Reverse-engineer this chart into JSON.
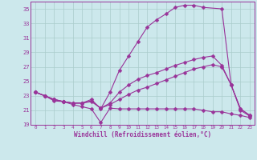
{
  "xlabel": "Windchill (Refroidissement éolien,°C)",
  "bg_color": "#cce8ec",
  "grid_color": "#aacccc",
  "line_color": "#993399",
  "xlim": [
    -0.5,
    23.5
  ],
  "ylim": [
    19,
    36
  ],
  "xtick_vals": [
    0,
    1,
    2,
    3,
    4,
    5,
    6,
    7,
    8,
    9,
    10,
    11,
    12,
    13,
    14,
    15,
    16,
    17,
    18,
    19,
    20,
    21,
    22,
    23
  ],
  "ytick_vals": [
    19,
    21,
    23,
    25,
    27,
    29,
    31,
    33,
    35
  ],
  "series": [
    {
      "x": [
        0,
        1,
        2,
        3,
        4,
        5,
        6,
        7,
        8,
        9,
        10,
        11,
        12,
        13,
        14,
        15,
        16,
        17,
        18,
        20,
        21,
        22,
        23
      ],
      "y": [
        23.5,
        23.0,
        22.5,
        22.2,
        22.0,
        22.0,
        22.5,
        21.2,
        23.5,
        26.5,
        28.5,
        30.5,
        32.5,
        33.5,
        34.3,
        35.2,
        35.5,
        35.5,
        35.2,
        35.0,
        24.5,
        21.2,
        20.3
      ]
    },
    {
      "x": [
        0,
        1,
        2,
        3,
        4,
        5,
        6,
        7,
        8,
        9,
        10,
        11,
        12,
        13,
        14,
        15,
        16,
        17,
        18,
        19,
        20,
        21,
        22,
        23
      ],
      "y": [
        23.5,
        23.0,
        22.5,
        22.2,
        22.0,
        22.0,
        22.3,
        21.3,
        22.0,
        23.5,
        24.5,
        25.3,
        25.8,
        26.2,
        26.7,
        27.2,
        27.6,
        28.0,
        28.3,
        28.5,
        27.2,
        24.5,
        21.2,
        20.3
      ]
    },
    {
      "x": [
        0,
        1,
        2,
        3,
        4,
        5,
        6,
        7,
        8,
        9,
        10,
        11,
        12,
        13,
        14,
        15,
        16,
        17,
        18,
        19,
        20,
        21,
        22,
        23
      ],
      "y": [
        23.5,
        23.0,
        22.5,
        22.2,
        22.0,
        22.0,
        22.2,
        21.3,
        21.8,
        22.5,
        23.2,
        23.8,
        24.2,
        24.7,
        25.2,
        25.7,
        26.2,
        26.7,
        27.0,
        27.3,
        27.0,
        24.5,
        21.0,
        20.2
      ]
    },
    {
      "x": [
        0,
        1,
        2,
        3,
        4,
        5,
        6,
        7,
        8,
        9,
        10,
        11,
        12,
        13,
        14,
        15,
        16,
        17,
        18,
        19,
        20,
        21,
        22,
        23
      ],
      "y": [
        23.5,
        23.0,
        22.3,
        22.2,
        21.8,
        21.5,
        21.2,
        19.3,
        21.3,
        21.2,
        21.2,
        21.2,
        21.2,
        21.2,
        21.2,
        21.2,
        21.2,
        21.2,
        21.0,
        20.8,
        20.8,
        20.5,
        20.3,
        20.0
      ]
    }
  ]
}
